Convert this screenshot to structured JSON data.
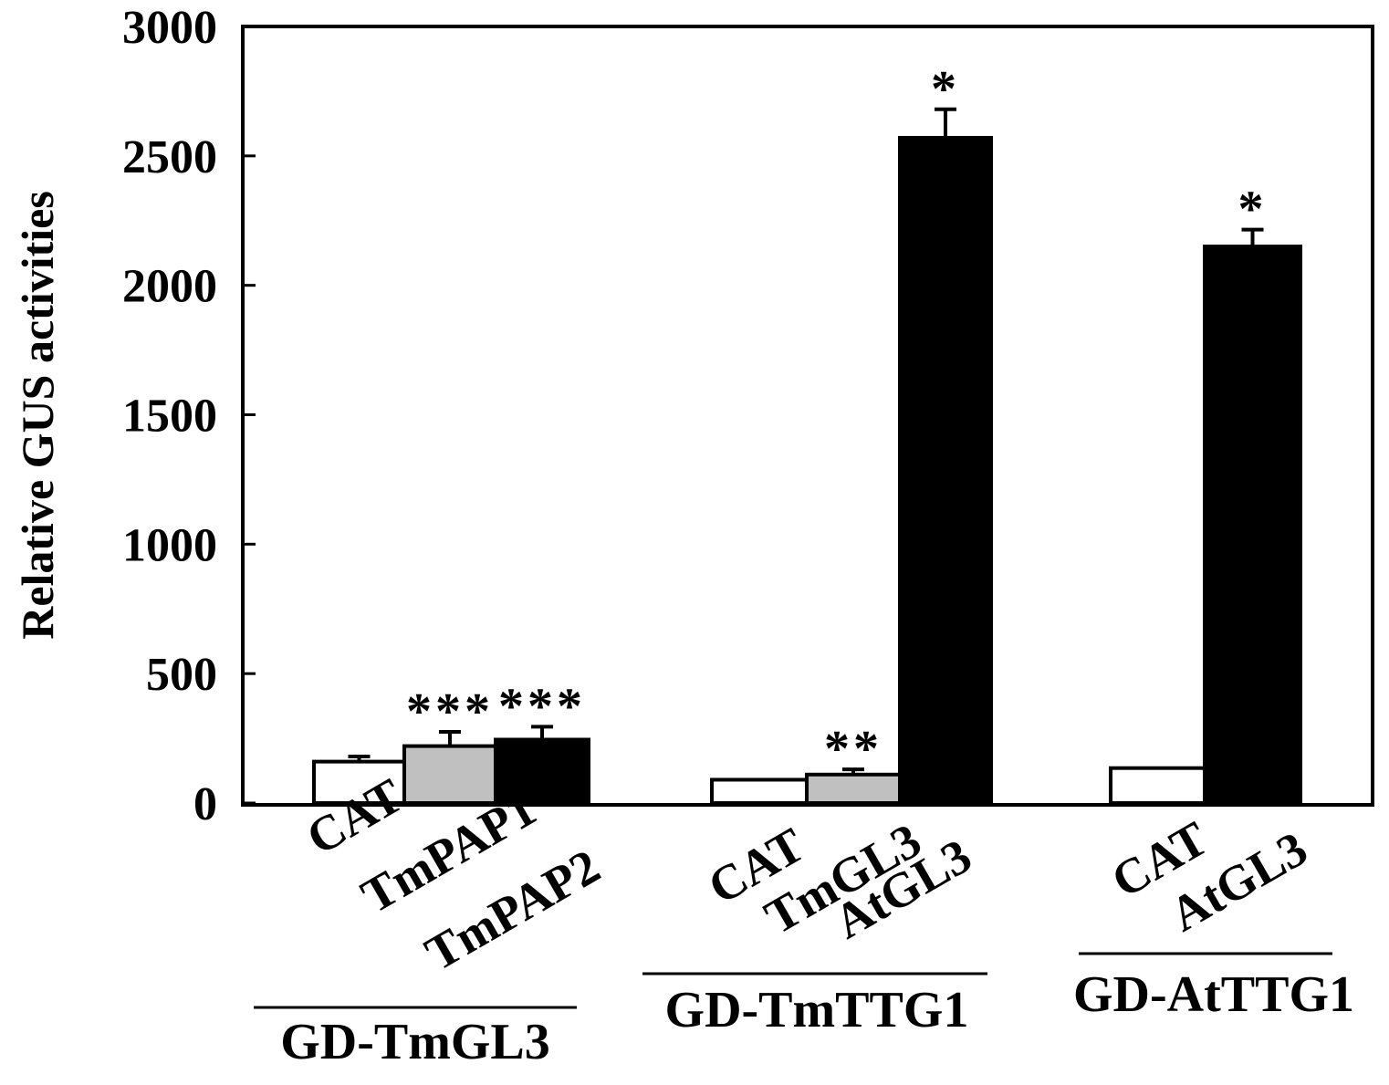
{
  "chart_data": {
    "type": "bar",
    "ylabel": "Relative GUS activities",
    "ylim": [
      0,
      3000
    ],
    "yticks": [
      "0",
      "500",
      "1000",
      "1500",
      "2000",
      "2500",
      "3000"
    ],
    "grid": false,
    "groups": [
      {
        "name": "GD-TmGL3",
        "bars": [
          {
            "label": "CAT",
            "value": 160,
            "error": 20,
            "fill": "#ffffff",
            "sig": ""
          },
          {
            "label": "TmPAP1",
            "value": 220,
            "error": 55,
            "fill": "#c0c0c0",
            "sig": "***"
          },
          {
            "label": "TmPAP2",
            "value": 245,
            "error": 50,
            "fill": "#000000",
            "sig": "***"
          }
        ]
      },
      {
        "name": "GD-TmTTG1",
        "bars": [
          {
            "label": "CAT",
            "value": 90,
            "error": 0,
            "fill": "#ffffff",
            "sig": ""
          },
          {
            "label": "TmGL3",
            "value": 110,
            "error": 20,
            "fill": "#c0c0c0",
            "sig": "**"
          },
          {
            "label": "AtGL3",
            "value": 2570,
            "error": 110,
            "fill": "#000000",
            "sig": "*"
          }
        ]
      },
      {
        "name": "GD-AtTTG1",
        "bars": [
          {
            "label": "CAT",
            "value": 135,
            "error": 0,
            "fill": "#ffffff",
            "sig": ""
          },
          {
            "label": "AtGL3",
            "value": 2150,
            "error": 65,
            "fill": "#000000",
            "sig": "*"
          }
        ]
      }
    ]
  }
}
